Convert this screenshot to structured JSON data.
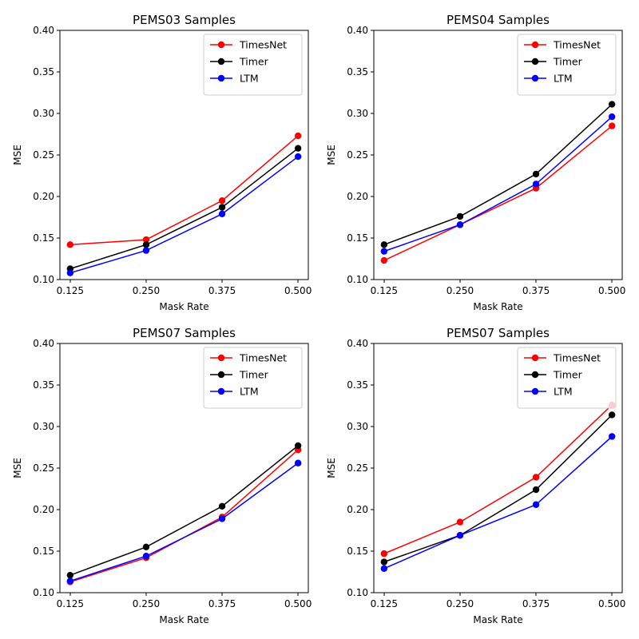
{
  "colors": {
    "TimesNet": "#ff0000",
    "Timer": "#000000",
    "LTM": "#0000ff"
  },
  "chart_data": [
    {
      "type": "line",
      "title": "PEMS03 Samples",
      "xlabel": "Mask Rate",
      "ylabel": "MSE",
      "x": [
        0.125,
        0.25,
        0.375,
        0.5
      ],
      "xticklabels": [
        "0.125",
        "0.250",
        "0.375",
        "0.500"
      ],
      "ylim": [
        0.1,
        0.4
      ],
      "yticks": [
        "0.10",
        "0.15",
        "0.20",
        "0.25",
        "0.30",
        "0.35",
        "0.40"
      ],
      "legend_position": "top-right",
      "series": [
        {
          "name": "TimesNet",
          "values": [
            0.142,
            0.148,
            0.195,
            0.273
          ]
        },
        {
          "name": "Timer",
          "values": [
            0.113,
            0.142,
            0.187,
            0.258
          ]
        },
        {
          "name": "LTM",
          "values": [
            0.108,
            0.135,
            0.179,
            0.248
          ]
        }
      ]
    },
    {
      "type": "line",
      "title": "PEMS04 Samples",
      "xlabel": "Mask Rate",
      "ylabel": "MSE",
      "x": [
        0.125,
        0.25,
        0.375,
        0.5
      ],
      "xticklabels": [
        "0.125",
        "0.250",
        "0.375",
        "0.500"
      ],
      "ylim": [
        0.1,
        0.4
      ],
      "yticks": [
        "0.10",
        "0.15",
        "0.20",
        "0.25",
        "0.30",
        "0.35",
        "0.40"
      ],
      "legend_position": "top-right",
      "series": [
        {
          "name": "TimesNet",
          "values": [
            0.123,
            0.166,
            0.21,
            0.285
          ]
        },
        {
          "name": "Timer",
          "values": [
            0.142,
            0.176,
            0.227,
            0.311
          ]
        },
        {
          "name": "LTM",
          "values": [
            0.134,
            0.166,
            0.215,
            0.296
          ]
        }
      ]
    },
    {
      "type": "line",
      "title": "PEMS07 Samples",
      "xlabel": "Mask Rate",
      "ylabel": "MSE",
      "x": [
        0.125,
        0.25,
        0.375,
        0.5
      ],
      "xticklabels": [
        "0.125",
        "0.250",
        "0.375",
        "0.500"
      ],
      "ylim": [
        0.1,
        0.4
      ],
      "yticks": [
        "0.10",
        "0.15",
        "0.20",
        "0.25",
        "0.30",
        "0.35",
        "0.40"
      ],
      "legend_position": "top-right",
      "series": [
        {
          "name": "TimesNet",
          "values": [
            0.113,
            0.142,
            0.191,
            0.272
          ]
        },
        {
          "name": "Timer",
          "values": [
            0.121,
            0.155,
            0.204,
            0.277
          ]
        },
        {
          "name": "LTM",
          "values": [
            0.114,
            0.144,
            0.189,
            0.256
          ]
        }
      ]
    },
    {
      "type": "line",
      "title": "PEMS07 Samples",
      "xlabel": "Mask Rate",
      "ylabel": "MSE",
      "x": [
        0.125,
        0.25,
        0.375,
        0.5
      ],
      "xticklabels": [
        "0.125",
        "0.250",
        "0.375",
        "0.500"
      ],
      "ylim": [
        0.1,
        0.4
      ],
      "yticks": [
        "0.10",
        "0.15",
        "0.20",
        "0.25",
        "0.30",
        "0.35",
        "0.40"
      ],
      "legend_position": "top-right",
      "series": [
        {
          "name": "TimesNet",
          "values": [
            0.147,
            0.185,
            0.239,
            0.326
          ]
        },
        {
          "name": "Timer",
          "values": [
            0.137,
            0.169,
            0.224,
            0.314
          ]
        },
        {
          "name": "LTM",
          "values": [
            0.129,
            0.169,
            0.206,
            0.288
          ]
        }
      ]
    }
  ]
}
